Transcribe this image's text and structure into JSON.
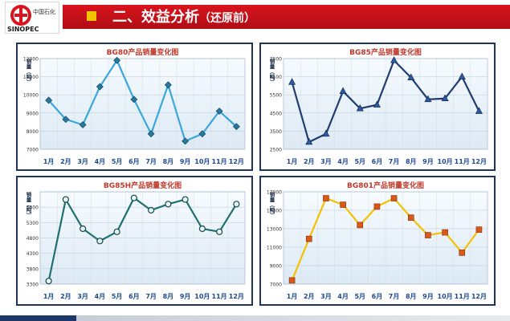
{
  "header": {
    "title": "二、效益分析",
    "subtitle": "（还原前）",
    "logo_text": "SINOPEC",
    "logo_cn": "中国石化"
  },
  "colors": {
    "brand_red": "#d9141d",
    "accent_yellow": "#f2c400",
    "panel_border": "#1e3458"
  },
  "chart_data": [
    {
      "type": "line",
      "title": "BG80产品销量变化图",
      "ylabel": "销量（吨）",
      "categories": [
        "1月",
        "2月",
        "3月",
        "4月",
        "5月",
        "6月",
        "7月",
        "8月",
        "9月",
        "10月",
        "11月",
        "12月"
      ],
      "values": [
        9700,
        8650,
        8350,
        10450,
        11900,
        9750,
        7850,
        10550,
        7450,
        7850,
        9100,
        8250
      ],
      "ylim": [
        7000,
        12000
      ],
      "yticks": [
        7000,
        8000,
        9000,
        10000,
        11000,
        12000
      ],
      "marker": "diamond",
      "line_color": "#3aa7dc",
      "marker_color": "#27799e",
      "grid": true
    },
    {
      "type": "line",
      "title": "BG85产品销量变化图",
      "ylabel": "销量（吨）",
      "categories": [
        "1月",
        "2月",
        "3月",
        "4月",
        "5月",
        "6月",
        "7月",
        "8月",
        "9月",
        "10月",
        "11月",
        "12月"
      ],
      "values": [
        6200,
        2900,
        3350,
        5700,
        4750,
        4950,
        7400,
        6450,
        5250,
        5300,
        6500,
        4600
      ],
      "ylim": [
        2500,
        7500
      ],
      "yticks": [
        2500,
        3500,
        4500,
        5500,
        6500,
        7500
      ],
      "marker": "triangle",
      "line_color": "#1f3d6e",
      "marker_color": "#2d5aa0",
      "grid": true
    },
    {
      "type": "line",
      "title": "BG85H产品销量变化图",
      "ylabel": "销量（吨）",
      "categories": [
        "1月",
        "2月",
        "3月",
        "4月",
        "5月",
        "6月",
        "7月",
        "8月",
        "9月",
        "10月",
        "11月",
        "12月"
      ],
      "values": [
        3400,
        6050,
        5100,
        4700,
        5000,
        6100,
        5700,
        5900,
        6050,
        5100,
        5000,
        5900
      ],
      "ylim": [
        3300,
        6300
      ],
      "yticks": [
        3300,
        3800,
        4300,
        4800,
        5300,
        5800
      ],
      "marker": "circle",
      "line_color": "#1f6f70",
      "marker_color": "#2b8f8f",
      "grid": true
    },
    {
      "type": "line",
      "title": "BG801产品销量变化图",
      "ylabel": "销量（吨）",
      "categories": [
        "1月",
        "2月",
        "3月",
        "4月",
        "5月",
        "6月",
        "7月",
        "8月",
        "9月",
        "10月",
        "11月",
        "12月"
      ],
      "values": [
        7400,
        11900,
        16300,
        15600,
        13400,
        15400,
        16300,
        14200,
        12300,
        12600,
        10400,
        12900
      ],
      "ylim": [
        7000,
        17000
      ],
      "yticks": [
        7000,
        9000,
        11000,
        13000,
        15000,
        17000
      ],
      "marker": "square",
      "line_color": "#f2c200",
      "marker_color": "#d8581a",
      "grid": true
    }
  ]
}
